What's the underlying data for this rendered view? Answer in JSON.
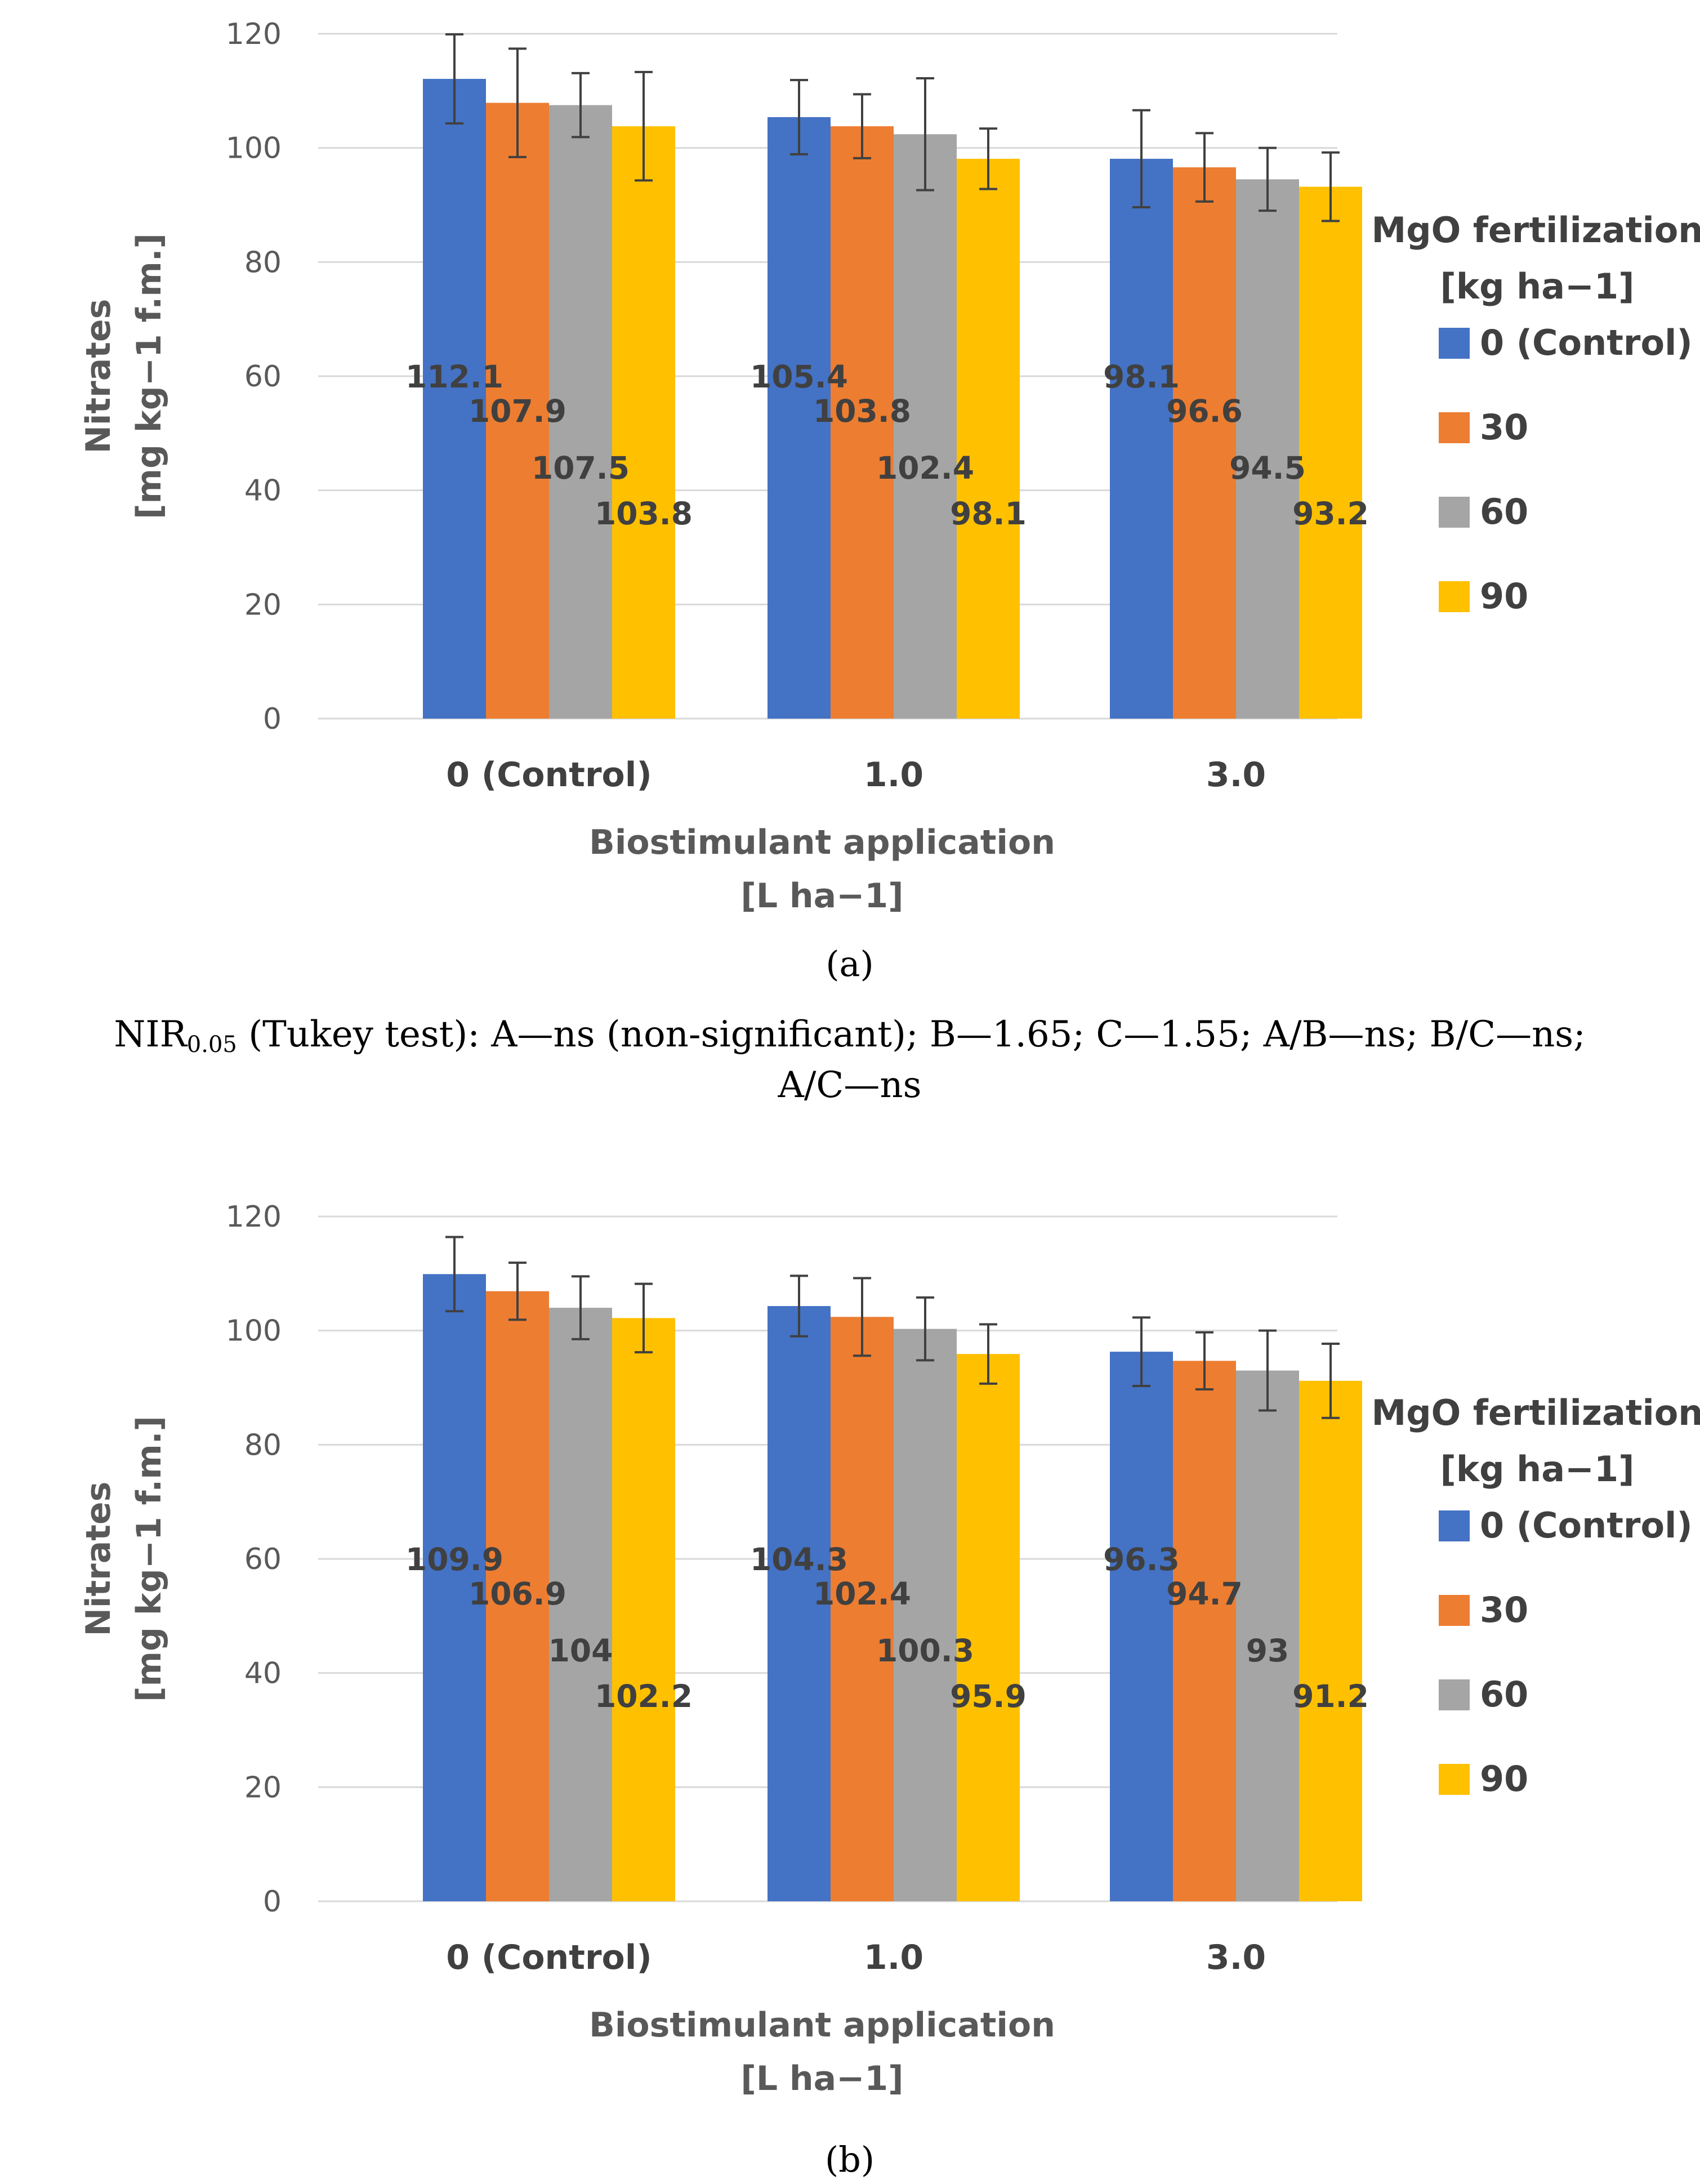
{
  "chart_data": [
    {
      "type": "bar",
      "panel_label": "(a)",
      "categories": [
        "0 (Control)",
        "1.0",
        "3.0"
      ],
      "xlabel_line1": "Biostimulant application",
      "xlabel_line2": "[L ha−1]",
      "ylabel_line1": "Nitrates",
      "ylabel_line2": "[mg kg−1 f.m.]",
      "ylim": [
        0,
        120
      ],
      "yticks": [
        0,
        20,
        40,
        60,
        80,
        100,
        120
      ],
      "grid": true,
      "legend_title_line1": "MgO fertilization",
      "legend_title_line2": "[kg ha−1]",
      "legend_position": "right",
      "series": [
        {
          "name": "0 (Control)",
          "color": "#4472C4",
          "values": [
            112.1,
            105.4,
            98.1
          ],
          "errors": [
            7.8,
            6.5,
            8.5
          ]
        },
        {
          "name": "30",
          "color": "#ED7D31",
          "values": [
            107.9,
            103.8,
            96.6
          ],
          "errors": [
            9.5,
            5.6,
            6.0
          ]
        },
        {
          "name": "60",
          "color": "#A5A5A5",
          "values": [
            107.5,
            102.4,
            94.5
          ],
          "errors": [
            5.6,
            9.8,
            5.5
          ]
        },
        {
          "name": "90",
          "color": "#FFC000",
          "values": [
            103.8,
            98.1,
            93.2
          ],
          "errors": [
            9.5,
            5.3,
            6.0
          ]
        }
      ]
    },
    {
      "type": "bar",
      "panel_label": "(b)",
      "categories": [
        "0 (Control)",
        "1.0",
        "3.0"
      ],
      "xlabel_line1": "Biostimulant application",
      "xlabel_line2": "[L ha−1]",
      "ylabel_line1": "Nitrates",
      "ylabel_line2": "[mg kg−1 f.m.]",
      "ylim": [
        0,
        120
      ],
      "yticks": [
        0,
        20,
        40,
        60,
        80,
        100,
        120
      ],
      "grid": true,
      "legend_title_line1": "MgO fertilization",
      "legend_title_line2": "[kg ha−1]",
      "legend_position": "right",
      "series": [
        {
          "name": "0 (Control)",
          "color": "#4472C4",
          "values": [
            109.9,
            104.3,
            96.3
          ],
          "errors": [
            6.5,
            5.3,
            6.0
          ]
        },
        {
          "name": "30",
          "color": "#ED7D31",
          "values": [
            106.9,
            102.4,
            94.7
          ],
          "errors": [
            5.0,
            6.8,
            5.0
          ]
        },
        {
          "name": "60",
          "color": "#A5A5A5",
          "values": [
            104.0,
            100.3,
            93.0
          ],
          "errors": [
            5.5,
            5.5,
            7.0
          ]
        },
        {
          "name": "90",
          "color": "#FFC000",
          "values": [
            102.2,
            95.9,
            91.2
          ],
          "errors": [
            6.0,
            5.2,
            6.5
          ]
        }
      ]
    }
  ],
  "data_labels": [
    [
      [
        "112.1",
        "105.4",
        "98.1"
      ],
      [
        "107.9",
        "103.8",
        "96.6"
      ],
      [
        "107.5",
        "102.4",
        "94.5"
      ],
      [
        "103.8",
        "98.1",
        "93.2"
      ]
    ],
    [
      [
        "109.9",
        "104.3",
        "96.3"
      ],
      [
        "106.9",
        "102.4",
        "94.7"
      ],
      [
        "104",
        "100.3",
        "93"
      ],
      [
        "102.2",
        "95.9",
        "91.2"
      ]
    ]
  ],
  "note": {
    "prefix": "NIR",
    "subscript": "0.05",
    "line1_rest": " (Tukey test): A—ns (non-significant); B—1.65; C—1.55; A/B—ns; B/C—ns;",
    "line2": "A/C—ns"
  }
}
